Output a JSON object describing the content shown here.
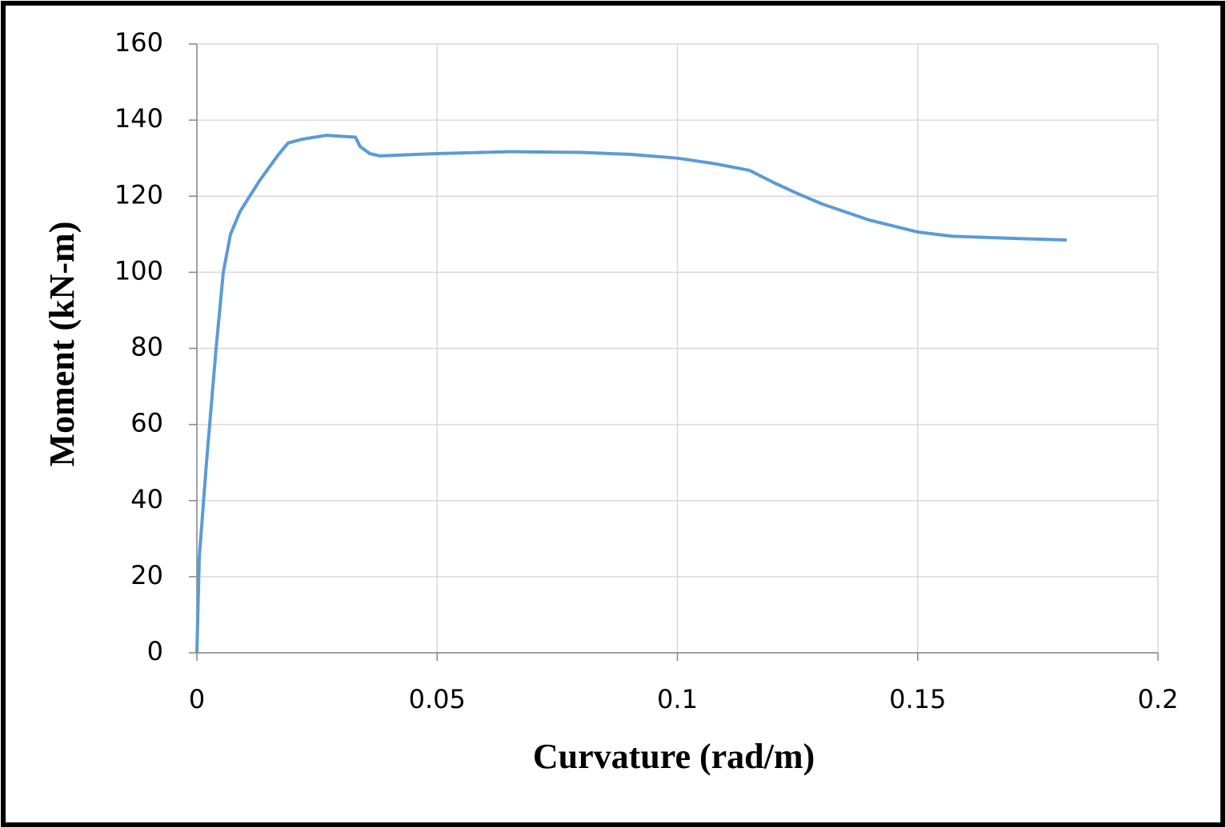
{
  "chart_data": {
    "type": "line",
    "x_label": "Curvature (rad/m)",
    "y_label": "Moment (kN-m)",
    "x": [
      0,
      0.0005,
      0.002,
      0.004,
      0.0055,
      0.007,
      0.009,
      0.013,
      0.017,
      0.019,
      0.022,
      0.027,
      0.033,
      0.034,
      0.036,
      0.038,
      0.05,
      0.065,
      0.08,
      0.09,
      0.1,
      0.108,
      0.115,
      0.12,
      0.125,
      0.13,
      0.14,
      0.15,
      0.157,
      0.17,
      0.181
    ],
    "series": [
      {
        "name": "Moment",
        "color": "#5b9bd5",
        "values": [
          0,
          25,
          50,
          80,
          100,
          110,
          116,
          124,
          131,
          134,
          135,
          136,
          135.5,
          133,
          131.2,
          130.6,
          131.2,
          131.7,
          131.5,
          131,
          130,
          128.5,
          126.8,
          123.6,
          120.7,
          118,
          113.7,
          110.6,
          109.5,
          108.9,
          108.5
        ]
      }
    ],
    "xlim": [
      0,
      0.2
    ],
    "xticks": [
      0,
      0.05,
      0.1,
      0.15,
      0.2
    ],
    "ylim": [
      0,
      160
    ],
    "yticks": [
      0,
      20,
      40,
      60,
      80,
      100,
      120,
      140,
      160
    ],
    "grid": true
  }
}
